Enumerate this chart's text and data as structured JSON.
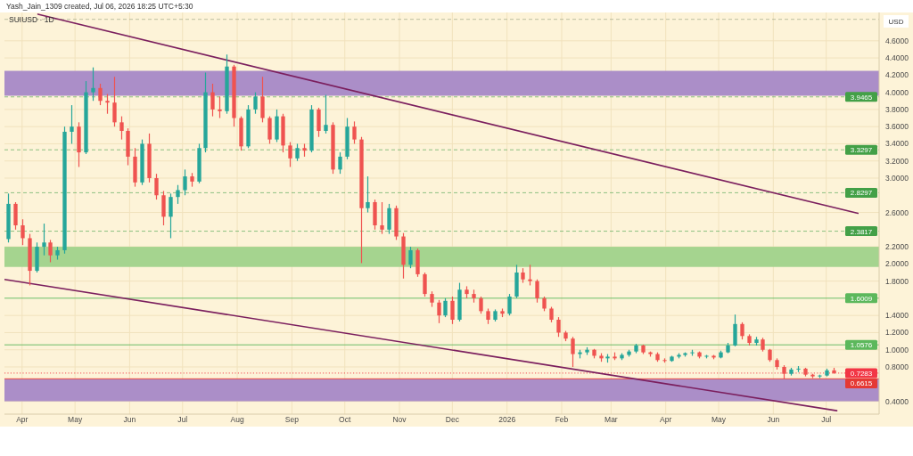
{
  "chart_data": {
    "type": "candlestick",
    "title": "SUIUSD · 1D",
    "ylabel": "USD",
    "annotations": [
      "Yash_Jain_1309 created, Jul 06, 2026 18:25 UTC+5:30"
    ],
    "x": [
      "2025-03-24",
      "2025-03-28",
      "2025-04-01",
      "2025-04-05",
      "2025-04-09",
      "2025-04-13",
      "2025-04-17",
      "2025-04-21",
      "2025-04-25",
      "2025-04-29",
      "2025-05-03",
      "2025-05-07",
      "2025-05-11",
      "2025-05-15",
      "2025-05-19",
      "2025-05-23",
      "2025-05-27",
      "2025-05-31",
      "2025-06-04",
      "2025-06-08",
      "2025-06-12",
      "2025-06-16",
      "2025-06-20",
      "2025-06-24",
      "2025-06-28",
      "2025-07-02",
      "2025-07-06",
      "2025-07-10",
      "2025-07-14",
      "2025-07-18",
      "2025-07-22",
      "2025-07-26",
      "2025-07-30",
      "2025-08-03",
      "2025-08-07",
      "2025-08-11",
      "2025-08-15",
      "2025-08-19",
      "2025-08-23",
      "2025-08-27",
      "2025-08-31",
      "2025-09-04",
      "2025-09-08",
      "2025-09-12",
      "2025-09-16",
      "2025-09-20",
      "2025-09-24",
      "2025-09-28",
      "2025-10-02",
      "2025-10-06",
      "2025-10-10",
      "2025-10-14",
      "2025-10-18",
      "2025-10-22",
      "2025-10-26",
      "2025-10-30",
      "2025-11-03",
      "2025-11-07",
      "2025-11-11",
      "2025-11-15",
      "2025-11-19",
      "2025-11-23",
      "2025-11-27",
      "2025-12-01",
      "2025-12-05",
      "2025-12-09",
      "2025-12-13",
      "2025-12-17",
      "2025-12-21",
      "2025-12-25",
      "2025-12-29",
      "2026-01-02",
      "2026-01-06",
      "2026-01-10",
      "2026-01-14",
      "2026-01-18",
      "2026-01-22",
      "2026-01-26",
      "2026-01-30",
      "2026-02-03",
      "2026-02-07",
      "2026-02-11",
      "2026-02-15",
      "2026-02-19",
      "2026-02-23",
      "2026-02-27",
      "2026-03-03",
      "2026-03-07",
      "2026-03-11",
      "2026-03-15",
      "2026-03-19",
      "2026-03-23",
      "2026-03-27",
      "2026-03-31",
      "2026-04-04",
      "2026-04-08",
      "2026-04-12",
      "2026-04-16",
      "2026-04-20",
      "2026-04-24",
      "2026-04-28",
      "2026-05-02",
      "2026-05-06",
      "2026-05-10",
      "2026-05-14",
      "2026-05-18",
      "2026-05-22",
      "2026-05-26",
      "2026-05-30",
      "2026-06-03",
      "2026-06-07",
      "2026-06-11",
      "2026-06-15",
      "2026-06-19",
      "2026-06-23",
      "2026-06-27",
      "2026-07-01",
      "2026-07-05"
    ],
    "ohlc": [
      [
        2.29,
        2.82,
        2.25,
        2.7
      ],
      [
        2.7,
        2.72,
        2.4,
        2.45
      ],
      [
        2.45,
        2.52,
        2.22,
        2.3
      ],
      [
        2.3,
        2.35,
        1.75,
        1.92
      ],
      [
        1.92,
        2.25,
        1.9,
        2.2
      ],
      [
        2.2,
        2.47,
        2.1,
        2.25
      ],
      [
        2.25,
        2.28,
        2.02,
        2.1
      ],
      [
        2.1,
        2.2,
        2.05,
        2.16
      ],
      [
        2.16,
        3.6,
        2.12,
        3.54
      ],
      [
        3.54,
        3.85,
        3.4,
        3.6
      ],
      [
        3.6,
        3.65,
        3.13,
        3.3
      ],
      [
        3.3,
        4.13,
        3.28,
        4.0
      ],
      [
        4.0,
        4.29,
        3.9,
        4.05
      ],
      [
        4.05,
        4.1,
        3.85,
        3.9
      ],
      [
        3.9,
        3.98,
        3.75,
        3.88
      ],
      [
        3.88,
        4.18,
        3.6,
        3.65
      ],
      [
        3.65,
        3.72,
        3.45,
        3.55
      ],
      [
        3.55,
        3.58,
        3.15,
        3.25
      ],
      [
        3.25,
        3.35,
        2.9,
        2.95
      ],
      [
        2.95,
        3.45,
        2.92,
        3.4
      ],
      [
        3.4,
        3.52,
        2.95,
        3.0
      ],
      [
        3.0,
        3.05,
        2.75,
        2.8
      ],
      [
        2.8,
        2.85,
        2.45,
        2.55
      ],
      [
        2.55,
        2.82,
        2.3,
        2.78
      ],
      [
        2.78,
        2.92,
        2.7,
        2.86
      ],
      [
        2.86,
        3.1,
        2.8,
        3.02
      ],
      [
        3.02,
        3.06,
        2.9,
        2.96
      ],
      [
        2.96,
        3.4,
        2.94,
        3.35
      ],
      [
        3.35,
        4.23,
        3.3,
        4.0
      ],
      [
        4.0,
        4.1,
        3.72,
        3.8
      ],
      [
        3.8,
        3.95,
        3.7,
        3.78
      ],
      [
        3.78,
        4.44,
        3.75,
        4.3
      ],
      [
        4.3,
        4.32,
        3.6,
        3.7
      ],
      [
        3.7,
        3.72,
        3.32,
        3.37
      ],
      [
        3.37,
        3.85,
        3.35,
        3.8
      ],
      [
        3.8,
        4.0,
        3.75,
        3.95
      ],
      [
        3.95,
        4.18,
        3.65,
        3.7
      ],
      [
        3.7,
        3.72,
        3.4,
        3.45
      ],
      [
        3.45,
        3.8,
        3.42,
        3.72
      ],
      [
        3.72,
        3.75,
        3.3,
        3.38
      ],
      [
        3.38,
        3.42,
        3.13,
        3.23
      ],
      [
        3.23,
        3.4,
        3.2,
        3.35
      ],
      [
        3.35,
        3.4,
        3.25,
        3.32
      ],
      [
        3.32,
        3.85,
        3.3,
        3.8
      ],
      [
        3.8,
        3.82,
        3.48,
        3.55
      ],
      [
        3.55,
        3.97,
        3.52,
        3.62
      ],
      [
        3.62,
        3.65,
        3.05,
        3.1
      ],
      [
        3.1,
        3.3,
        3.05,
        3.25
      ],
      [
        3.25,
        3.7,
        3.22,
        3.6
      ],
      [
        3.6,
        3.66,
        3.4,
        3.45
      ],
      [
        3.45,
        3.48,
        2.01,
        2.65
      ],
      [
        2.65,
        3.02,
        2.6,
        2.72
      ],
      [
        2.72,
        2.75,
        2.4,
        2.45
      ],
      [
        2.45,
        2.72,
        2.35,
        2.4
      ],
      [
        2.4,
        2.7,
        2.35,
        2.65
      ],
      [
        2.65,
        2.68,
        2.28,
        2.32
      ],
      [
        2.32,
        2.36,
        1.83,
        1.99
      ],
      [
        1.99,
        2.2,
        1.95,
        2.16
      ],
      [
        2.16,
        2.18,
        1.85,
        1.88
      ],
      [
        1.88,
        1.9,
        1.62,
        1.65
      ],
      [
        1.65,
        1.68,
        1.5,
        1.55
      ],
      [
        1.55,
        1.58,
        1.31,
        1.4
      ],
      [
        1.4,
        1.6,
        1.38,
        1.57
      ],
      [
        1.57,
        1.62,
        1.3,
        1.35
      ],
      [
        1.35,
        1.78,
        1.33,
        1.7
      ],
      [
        1.7,
        1.74,
        1.6,
        1.65
      ],
      [
        1.65,
        1.7,
        1.55,
        1.6
      ],
      [
        1.6,
        1.62,
        1.42,
        1.45
      ],
      [
        1.45,
        1.48,
        1.3,
        1.35
      ],
      [
        1.35,
        1.47,
        1.33,
        1.45
      ],
      [
        1.45,
        1.48,
        1.38,
        1.42
      ],
      [
        1.42,
        1.65,
        1.4,
        1.62
      ],
      [
        1.62,
        1.99,
        1.6,
        1.9
      ],
      [
        1.9,
        1.95,
        1.78,
        1.82
      ],
      [
        1.82,
        1.99,
        1.75,
        1.8
      ],
      [
        1.8,
        1.82,
        1.55,
        1.6
      ],
      [
        1.6,
        1.62,
        1.45,
        1.48
      ],
      [
        1.48,
        1.5,
        1.32,
        1.35
      ],
      [
        1.35,
        1.38,
        1.15,
        1.2
      ],
      [
        1.2,
        1.22,
        1.1,
        1.13
      ],
      [
        1.13,
        1.15,
        0.8,
        0.95
      ],
      [
        0.95,
        1.0,
        0.9,
        0.97
      ],
      [
        0.97,
        1.03,
        0.94,
        1.0
      ],
      [
        1.0,
        1.01,
        0.9,
        0.93
      ],
      [
        0.93,
        0.96,
        0.86,
        0.9
      ],
      [
        0.9,
        0.95,
        0.85,
        0.92
      ],
      [
        0.92,
        0.97,
        0.88,
        0.9
      ],
      [
        0.9,
        0.96,
        0.88,
        0.94
      ],
      [
        0.94,
        1.0,
        0.92,
        0.98
      ],
      [
        0.98,
        1.07,
        0.96,
        1.05
      ],
      [
        1.05,
        1.06,
        0.95,
        0.97
      ],
      [
        0.97,
        0.98,
        0.92,
        0.95
      ],
      [
        0.95,
        0.97,
        0.86,
        0.88
      ],
      [
        0.88,
        0.9,
        0.85,
        0.87
      ],
      [
        0.87,
        0.93,
        0.86,
        0.92
      ],
      [
        0.92,
        0.96,
        0.9,
        0.94
      ],
      [
        0.94,
        0.97,
        0.92,
        0.96
      ],
      [
        0.96,
        1.0,
        0.93,
        0.97
      ],
      [
        0.97,
        0.98,
        0.9,
        0.92
      ],
      [
        0.92,
        0.94,
        0.9,
        0.93
      ],
      [
        0.93,
        0.94,
        0.89,
        0.91
      ],
      [
        0.91,
        0.99,
        0.9,
        0.97
      ],
      [
        0.97,
        1.08,
        0.96,
        1.05
      ],
      [
        1.05,
        1.41,
        1.04,
        1.3
      ],
      [
        1.3,
        1.32,
        1.12,
        1.16
      ],
      [
        1.16,
        1.18,
        1.05,
        1.08
      ],
      [
        1.08,
        1.15,
        1.05,
        1.12
      ],
      [
        1.12,
        1.14,
        0.98,
        1.0
      ],
      [
        1.0,
        1.01,
        0.86,
        0.88
      ],
      [
        0.88,
        0.9,
        0.77,
        0.8
      ],
      [
        0.8,
        0.82,
        0.66,
        0.72
      ],
      [
        0.72,
        0.79,
        0.7,
        0.77
      ],
      [
        0.77,
        0.81,
        0.74,
        0.78
      ],
      [
        0.78,
        0.79,
        0.69,
        0.71
      ],
      [
        0.71,
        0.72,
        0.67,
        0.69
      ],
      [
        0.69,
        0.71,
        0.67,
        0.7
      ],
      [
        0.7,
        0.78,
        0.69,
        0.76
      ],
      [
        0.76,
        0.79,
        0.72,
        0.7283
      ]
    ],
    "colors": [
      "#26a69a",
      "#ef5350",
      "#ef5350",
      "#ef5350",
      "#26a69a",
      "#26a69a",
      "#ef5350",
      "#26a69a",
      "#26a69a",
      "#26a69a",
      "#ef5350",
      "#26a69a",
      "#26a69a",
      "#ef5350",
      "#ef5350",
      "#ef5350",
      "#ef5350",
      "#ef5350",
      "#ef5350",
      "#26a69a",
      "#ef5350",
      "#ef5350",
      "#ef5350",
      "#26a69a",
      "#26a69a",
      "#26a69a",
      "#ef5350",
      "#26a69a",
      "#26a69a",
      "#ef5350",
      "#ef5350",
      "#26a69a",
      "#ef5350",
      "#ef5350",
      "#26a69a",
      "#26a69a",
      "#ef5350",
      "#ef5350",
      "#26a69a",
      "#ef5350",
      "#ef5350",
      "#26a69a",
      "#ef5350",
      "#26a69a",
      "#ef5350",
      "#26a69a",
      "#ef5350",
      "#26a69a",
      "#26a69a",
      "#ef5350",
      "#ef5350",
      "#26a69a",
      "#ef5350",
      "#ef5350",
      "#26a69a",
      "#ef5350",
      "#ef5350",
      "#26a69a",
      "#ef5350",
      "#ef5350",
      "#ef5350",
      "#ef5350",
      "#26a69a",
      "#ef5350",
      "#26a69a",
      "#ef5350",
      "#ef5350",
      "#ef5350",
      "#ef5350",
      "#26a69a",
      "#ef5350",
      "#26a69a",
      "#26a69a",
      "#ef5350",
      "#ef5350",
      "#ef5350",
      "#ef5350",
      "#ef5350",
      "#ef5350",
      "#ef5350",
      "#ef5350",
      "#26a69a",
      "#26a69a",
      "#ef5350",
      "#ef5350",
      "#26a69a",
      "#ef5350",
      "#26a69a",
      "#26a69a",
      "#26a69a",
      "#ef5350",
      "#ef5350",
      "#ef5350",
      "#ef5350",
      "#26a69a",
      "#26a69a",
      "#26a69a",
      "#26a69a",
      "#ef5350",
      "#26a69a",
      "#ef5350",
      "#26a69a",
      "#26a69a",
      "#26a69a",
      "#ef5350",
      "#ef5350",
      "#26a69a",
      "#ef5350",
      "#ef5350",
      "#ef5350",
      "#ef5350",
      "#26a69a",
      "#26a69a",
      "#ef5350",
      "#ef5350",
      "#26a69a",
      "#26a69a",
      "#ef5350"
    ],
    "series": [
      {
        "type": "line",
        "color": "#7b1f5e",
        "x": [
          "2025-04-10",
          "2026-07-19"
        ],
        "values": [
          4.91,
          2.59
        ]
      },
      {
        "type": "line",
        "color": "#7b1f5e",
        "x": [
          "2025-03-22",
          "2026-07-07"
        ],
        "values": [
          1.82,
          0.29
        ]
      }
    ],
    "xlim": [
      "2025-03-22",
      "2026-07-31"
    ],
    "xticks": [
      {
        "value": "2025-04-01",
        "label": "Apr"
      },
      {
        "value": "2025-05-01",
        "label": "May"
      },
      {
        "value": "2025-06-01",
        "label": "Jun"
      },
      {
        "value": "2025-07-01",
        "label": "Jul"
      },
      {
        "value": "2025-08-01",
        "label": "Aug"
      },
      {
        "value": "2025-09-01",
        "label": "Sep"
      },
      {
        "value": "2025-10-01",
        "label": "Oct"
      },
      {
        "value": "2025-11-01",
        "label": "Nov"
      },
      {
        "value": "2025-12-01",
        "label": "Dec"
      },
      {
        "value": "2026-01-01",
        "label": "2026"
      },
      {
        "value": "2026-02-01",
        "label": "Feb"
      },
      {
        "value": "2026-03-01",
        "label": "Mar"
      },
      {
        "value": "2026-04-01",
        "label": "Apr"
      },
      {
        "value": "2026-05-01",
        "label": "May"
      },
      {
        "value": "2026-06-01",
        "label": "Jun"
      },
      {
        "value": "2026-07-01",
        "label": "Jul"
      }
    ],
    "ylim": [
      0.25,
      4.93
    ],
    "yticks": [
      {
        "value": 0.4,
        "label": "0.4000"
      },
      {
        "value": 0.8,
        "label": "0.8000"
      },
      {
        "value": 1.0,
        "label": "1.0000"
      },
      {
        "value": 1.2,
        "label": "1.2000"
      },
      {
        "value": 1.4,
        "label": "1.4000"
      },
      {
        "value": 1.8,
        "label": "1.8000"
      },
      {
        "value": 2.0,
        "label": "2.0000"
      },
      {
        "value": 2.2,
        "label": "2.2000"
      },
      {
        "value": 2.6,
        "label": "2.6000"
      },
      {
        "value": 3.0,
        "label": "3.0000"
      },
      {
        "value": 3.2,
        "label": "3.2000"
      },
      {
        "value": 3.4,
        "label": "3.4000"
      },
      {
        "value": 3.6,
        "label": "3.6000"
      },
      {
        "value": 3.8,
        "label": "3.8000"
      },
      {
        "value": 4.0,
        "label": "4.0000"
      },
      {
        "value": 4.2,
        "label": "4.2000"
      },
      {
        "value": 4.4,
        "label": "4.4000"
      },
      {
        "value": 4.6,
        "label": "4.6000"
      }
    ],
    "grid": true,
    "bands": [
      {
        "axis": "y",
        "from": 3.96,
        "to": 4.25,
        "color": "#ab8ec8"
      },
      {
        "axis": "y",
        "from": 1.965,
        "to": 2.2,
        "color": "#a5d48f"
      },
      {
        "axis": "y",
        "from": 0.4,
        "to": 0.66,
        "color": "#ab8ec8"
      }
    ],
    "ref_lines": [
      {
        "axis": "y",
        "value": 4.85,
        "line_style": "dashed",
        "color": "#8f9a7c"
      },
      {
        "axis": "y",
        "value": 3.9465,
        "label": "3.9465",
        "line_style": "dashed",
        "color": "#43a047"
      },
      {
        "axis": "y",
        "value": 3.3297,
        "label": "3.3297",
        "line_style": "dashed",
        "color": "#43a047"
      },
      {
        "axis": "y",
        "value": 2.8297,
        "label": "2.8297",
        "line_style": "dashed",
        "color": "#43a047"
      },
      {
        "axis": "y",
        "value": 2.3817,
        "label": "2.3817",
        "line_style": "dashed",
        "color": "#43a047"
      },
      {
        "axis": "y",
        "value": 1.6009,
        "label": "1.6009",
        "line_style": "solid",
        "color": "#5cb85c"
      },
      {
        "axis": "y",
        "value": 1.0576,
        "label": "1.0576",
        "line_style": "solid",
        "color": "#5cb85c"
      },
      {
        "axis": "y",
        "value": 0.7283,
        "label": "0.7283",
        "line_style": "dotted",
        "color": "#f23645"
      },
      {
        "axis": "y",
        "value": 0.6615,
        "label": "0.6615",
        "line_style": "solid",
        "color": "#e53935"
      }
    ]
  }
}
